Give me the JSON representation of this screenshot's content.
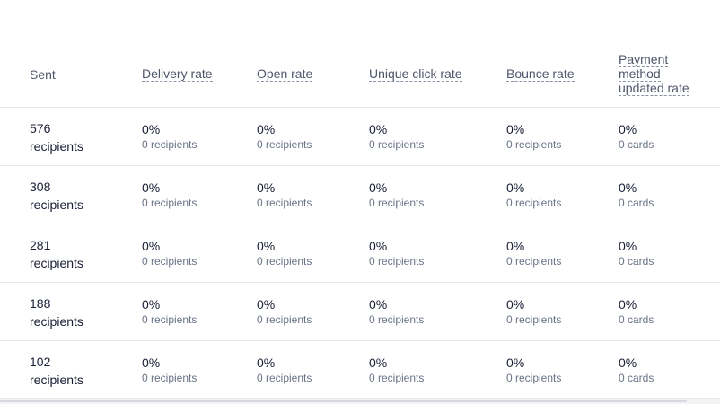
{
  "columns": {
    "sent": "Sent",
    "delivery": "Delivery rate",
    "open": "Open rate",
    "click": "Unique click rate",
    "bounce": "Bounce rate",
    "payment_line1": "Payment",
    "payment_line2": "method",
    "payment_line3": "updated rate"
  },
  "rows": [
    {
      "sent_count": "576",
      "sent_unit": "recipients",
      "delivery_pct": "0%",
      "delivery_sub": "0 recipients",
      "open_pct": "0%",
      "open_sub": "0 recipients",
      "click_pct": "0%",
      "click_sub": "0 recipients",
      "bounce_pct": "0%",
      "bounce_sub": "0 recipients",
      "payment_pct": "0%",
      "payment_sub": "0 cards"
    },
    {
      "sent_count": "308",
      "sent_unit": "recipients",
      "delivery_pct": "0%",
      "delivery_sub": "0 recipients",
      "open_pct": "0%",
      "open_sub": "0 recipients",
      "click_pct": "0%",
      "click_sub": "0 recipients",
      "bounce_pct": "0%",
      "bounce_sub": "0 recipients",
      "payment_pct": "0%",
      "payment_sub": "0 cards"
    },
    {
      "sent_count": "281",
      "sent_unit": "recipients",
      "delivery_pct": "0%",
      "delivery_sub": "0 recipients",
      "open_pct": "0%",
      "open_sub": "0 recipients",
      "click_pct": "0%",
      "click_sub": "0 recipients",
      "bounce_pct": "0%",
      "bounce_sub": "0 recipients",
      "payment_pct": "0%",
      "payment_sub": "0 cards"
    },
    {
      "sent_count": "188",
      "sent_unit": "recipients",
      "delivery_pct": "0%",
      "delivery_sub": "0 recipients",
      "open_pct": "0%",
      "open_sub": "0 recipients",
      "click_pct": "0%",
      "click_sub": "0 recipients",
      "bounce_pct": "0%",
      "bounce_sub": "0 recipients",
      "payment_pct": "0%",
      "payment_sub": "0 cards"
    },
    {
      "sent_count": "102",
      "sent_unit": "recipients",
      "delivery_pct": "0%",
      "delivery_sub": "0 recipients",
      "open_pct": "0%",
      "open_sub": "0 recipients",
      "click_pct": "0%",
      "click_sub": "0 recipients",
      "bounce_pct": "0%",
      "bounce_sub": "0 recipients",
      "payment_pct": "0%",
      "payment_sub": "0 cards"
    }
  ]
}
